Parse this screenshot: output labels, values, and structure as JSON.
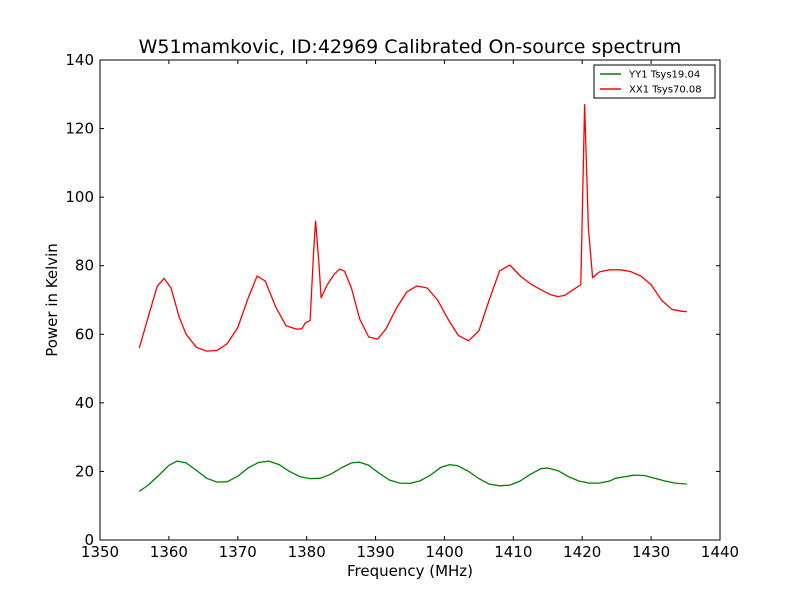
{
  "chart_data": {
    "type": "line",
    "title": "W51mamkovic, ID:42969 Calibrated On-source spectrum",
    "xlabel": "Frequency (MHz)",
    "ylabel": "Power in Kelvin",
    "xlim": [
      1350,
      1440
    ],
    "ylim": [
      0,
      140
    ],
    "xticks": [
      "1350",
      "1360",
      "1370",
      "1380",
      "1390",
      "1400",
      "1410",
      "1420",
      "1430",
      "1440"
    ],
    "yticks": [
      "0",
      "20",
      "40",
      "60",
      "80",
      "100",
      "120",
      "140"
    ],
    "grid": false,
    "legend_position": "top-right",
    "series": [
      {
        "name": "YY1 Tsys19.04",
        "color": "#008000",
        "x": [
          1355.7,
          1357,
          1358.5,
          1360,
          1361.2,
          1362.5,
          1364,
          1365.5,
          1367,
          1368.5,
          1370,
          1371.5,
          1373,
          1374.5,
          1376,
          1377.5,
          1379,
          1380.5,
          1382,
          1383.5,
          1385,
          1386.5,
          1387.7,
          1389,
          1390.5,
          1392,
          1393.5,
          1395,
          1396.5,
          1398,
          1399.5,
          1400.8,
          1402,
          1403.5,
          1405,
          1406.5,
          1408,
          1409.5,
          1411,
          1412.5,
          1414,
          1415,
          1416.5,
          1418,
          1419.5,
          1421,
          1422.5,
          1424,
          1424.8,
          1426,
          1427.5,
          1429,
          1430.5,
          1432,
          1433.5,
          1435.2
        ],
        "y": [
          14.2,
          16.0,
          18.8,
          21.8,
          23.0,
          22.5,
          20.3,
          18.0,
          16.9,
          17.0,
          18.6,
          21.0,
          22.6,
          23.0,
          22.0,
          20.0,
          18.5,
          17.9,
          18.0,
          19.2,
          21.0,
          22.5,
          22.7,
          21.8,
          19.5,
          17.5,
          16.6,
          16.5,
          17.3,
          19.0,
          21.2,
          22.0,
          21.6,
          20.0,
          17.9,
          16.3,
          15.8,
          16.0,
          17.2,
          19.2,
          20.8,
          21.0,
          20.2,
          18.5,
          17.2,
          16.6,
          16.6,
          17.2,
          18.0,
          18.4,
          18.9,
          18.8,
          18.0,
          17.2,
          16.6,
          16.3
        ]
      },
      {
        "name": "XX1 Tsys70.08",
        "color": "#ff0000",
        "x": [
          1355.7,
          1357,
          1358.3,
          1359.3,
          1360.3,
          1361.5,
          1362.5,
          1364,
          1365.5,
          1367,
          1368.5,
          1370,
          1371.5,
          1372.8,
          1374,
          1375.5,
          1377,
          1378.5,
          1379.3,
          1379.8,
          1380.5,
          1381,
          1381.3,
          1381.8,
          1382.1,
          1383,
          1384,
          1384.8,
          1385.5,
          1386.5,
          1387.7,
          1389,
          1390.3,
          1391.5,
          1393,
          1394.5,
          1396,
          1397.5,
          1399,
          1400.5,
          1402,
          1403.5,
          1405,
          1406.5,
          1408,
          1409.5,
          1411,
          1412.5,
          1414,
          1415.5,
          1416.5,
          1417.5,
          1418.7,
          1419.8,
          1420.35,
          1420.9,
          1421.5,
          1422.5,
          1424,
          1425.5,
          1427,
          1428.5,
          1430,
          1431.5,
          1433,
          1434.5,
          1435.2
        ],
        "y": [
          56.0,
          65.0,
          74.0,
          76.3,
          73.5,
          65.0,
          60.0,
          56.2,
          55.1,
          55.3,
          57.3,
          62.0,
          70.5,
          77.0,
          75.5,
          68.0,
          62.5,
          61.5,
          61.6,
          63.3,
          64.0,
          84.0,
          93.0,
          80.0,
          70.6,
          74.5,
          77.5,
          79.0,
          78.4,
          73.5,
          64.5,
          59.2,
          58.6,
          61.5,
          67.5,
          72.3,
          74.1,
          73.5,
          70.0,
          64.5,
          59.7,
          58.1,
          61.0,
          70.0,
          78.5,
          80.2,
          77.0,
          74.7,
          73.0,
          71.5,
          71.0,
          71.4,
          73.0,
          74.5,
          127.0,
          91.0,
          76.5,
          78.2,
          78.8,
          78.8,
          78.3,
          77.0,
          74.5,
          70.0,
          67.3,
          66.7,
          66.6
        ]
      }
    ]
  }
}
